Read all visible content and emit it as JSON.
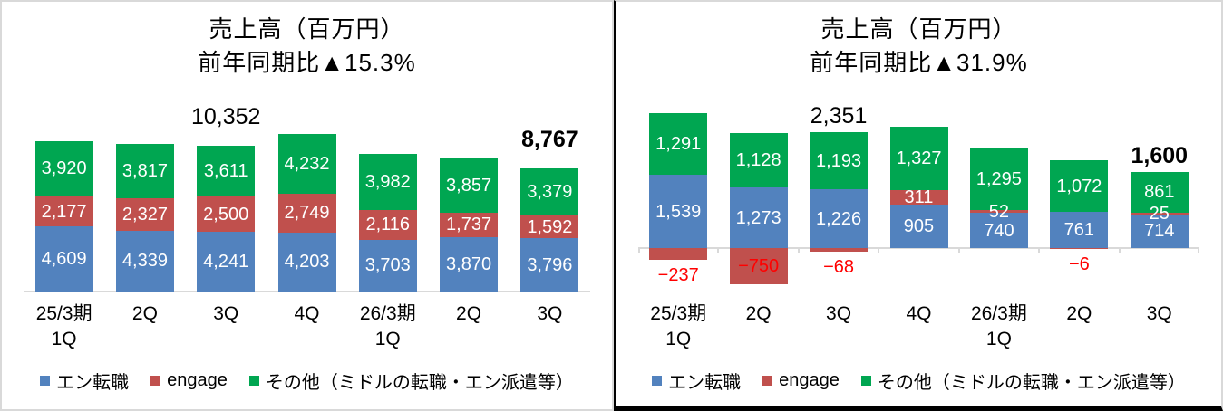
{
  "colors": {
    "blue": "#5282BE",
    "red": "#C0504D",
    "green": "#00A651",
    "negative_label": "#FF0000",
    "axis_line": "#D9D9D9",
    "panel_border_gray": "#D9D9D9",
    "panel_border_black": "#000000",
    "value_label": "#FFFFFF",
    "text": "#000000"
  },
  "chart_data": [
    {
      "type": "bar",
      "stacked": true,
      "title": "売上高（百万円）",
      "subtitle": "前年同期比▲15.3%",
      "categories": [
        "25/3期 1Q",
        "2Q",
        "3Q",
        "4Q",
        "26/3期 1Q",
        "2Q",
        "3Q"
      ],
      "category_labels": [
        [
          "25/3期",
          "1Q"
        ],
        [
          "2Q"
        ],
        [
          "3Q"
        ],
        [
          "4Q"
        ],
        [
          "26/3期",
          "1Q"
        ],
        [
          "2Q"
        ],
        [
          "3Q"
        ]
      ],
      "series": [
        {
          "name": "エン転職",
          "color_key": "blue",
          "values": [
            4609,
            4339,
            4241,
            4203,
            3703,
            3870,
            3796
          ]
        },
        {
          "name": "engage",
          "color_key": "red",
          "values": [
            2177,
            2327,
            2500,
            2749,
            2116,
            1737,
            1592
          ]
        },
        {
          "name": "その他（ミドルの転職・エン派遣等）",
          "color_key": "green",
          "values": [
            3920,
            3817,
            3611,
            4232,
            3982,
            3857,
            3379
          ]
        }
      ],
      "annotations": [
        {
          "category_index": 2,
          "label": "10,352",
          "bold": false
        },
        {
          "category_index": 6,
          "label": "8,767",
          "bold": true
        }
      ],
      "ylim": [
        0,
        14500
      ],
      "grid": false,
      "axis_ticks": false,
      "legend_position": "bottom"
    },
    {
      "type": "bar",
      "stacked": true,
      "title": "売上高（百万円）",
      "subtitle": "前年同期比▲31.9%",
      "categories": [
        "25/3期 1Q",
        "2Q",
        "3Q",
        "4Q",
        "26/3期 1Q",
        "2Q",
        "3Q"
      ],
      "category_labels": [
        [
          "25/3期",
          "1Q"
        ],
        [
          "2Q"
        ],
        [
          "3Q"
        ],
        [
          "4Q"
        ],
        [
          "26/3期",
          "1Q"
        ],
        [
          "2Q"
        ],
        [
          "3Q"
        ]
      ],
      "series": [
        {
          "name": "エン転職",
          "color_key": "blue",
          "values": [
            1539,
            1273,
            1226,
            905,
            740,
            761,
            714
          ]
        },
        {
          "name": "engage",
          "color_key": "red",
          "values": [
            -237,
            -750,
            -68,
            311,
            52,
            -6,
            25
          ]
        },
        {
          "name": "その他（ミドルの転職・エン派遣等）",
          "color_key": "green",
          "values": [
            1291,
            1128,
            1193,
            1327,
            1295,
            1072,
            861
          ]
        }
      ],
      "annotations": [
        {
          "category_index": 2,
          "label": "2,351",
          "bold": false
        },
        {
          "category_index": 6,
          "label": "1,600",
          "bold": true
        }
      ],
      "ylim": [
        -900,
        3350
      ],
      "grid": false,
      "axis_ticks": true,
      "legend_position": "bottom"
    }
  ]
}
